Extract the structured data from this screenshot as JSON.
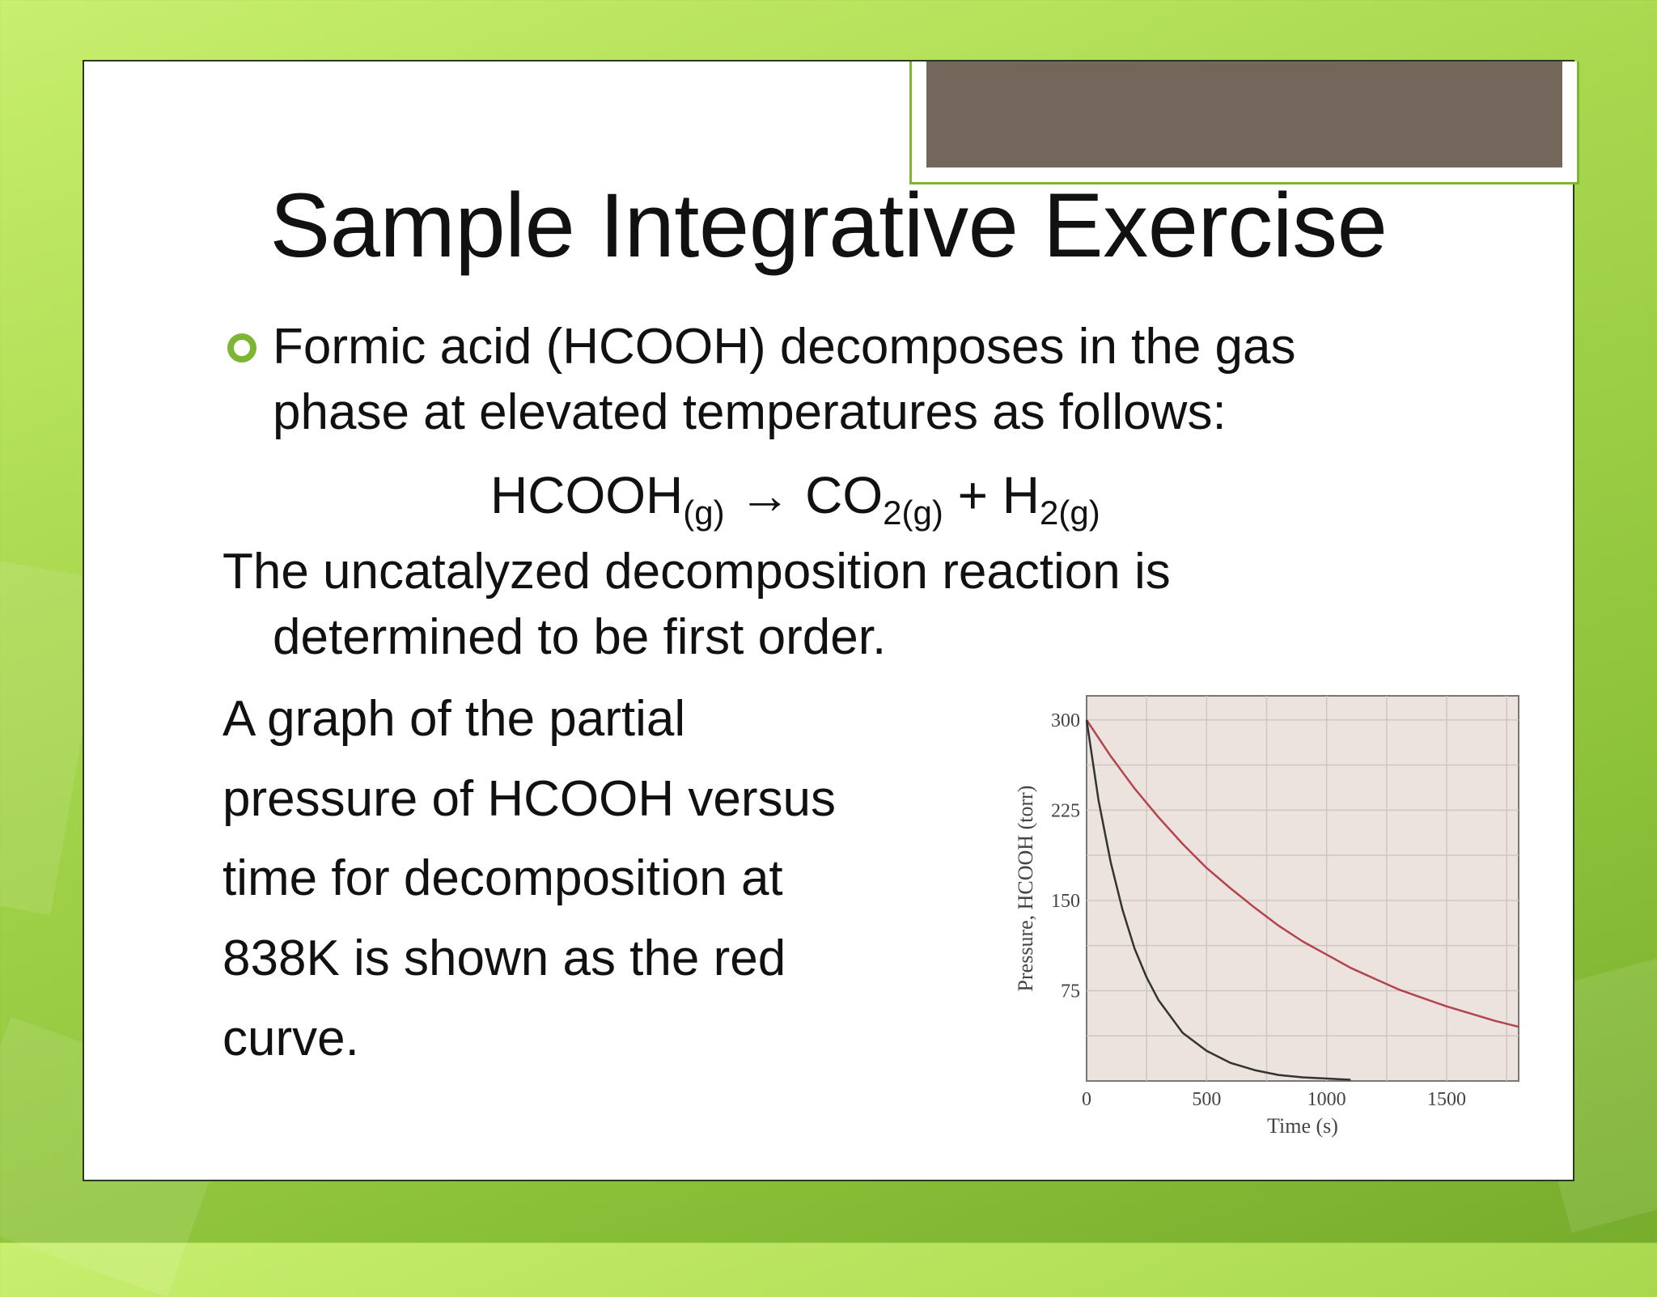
{
  "slide": {
    "title": "Sample Integrative Exercise",
    "bullet_text_line1": "Formic acid (HCOOH) decomposes in the gas",
    "bullet_text_line2": "phase at elevated temperatures as follows:",
    "equation": {
      "reactant": "HCOOH",
      "reactant_state": "(g)",
      "arrow": "→",
      "product1": "CO",
      "product1_sub": "2(g)",
      "plus": "+",
      "product2": "H",
      "product2_sub": "2(g)"
    },
    "para2_line1": "The uncatalyzed decomposition reaction is",
    "para2_line2": "determined to be first order.",
    "para3_lines": [
      "A graph of the partial",
      "pressure of HCOOH versus",
      "time for decomposition at",
      "838K is shown as the red",
      "curve."
    ]
  },
  "colors": {
    "accent_green": "#7eb634",
    "tab_brown": "#73665a",
    "plot_bg": "#ece3de",
    "red_curve": "#b4434d",
    "black_curve": "#333333"
  },
  "chart_data": {
    "type": "line",
    "xlabel": "Time (s)",
    "ylabel": "Pressure, HCOOH (torr)",
    "xlim": [
      0,
      1800
    ],
    "ylim": [
      0,
      320
    ],
    "x_ticks": [
      0,
      500,
      1000,
      1500
    ],
    "y_ticks": [
      75,
      150,
      225,
      300
    ],
    "grid": true,
    "series": [
      {
        "color": "#b4434d",
        "x": [
          0,
          100,
          200,
          300,
          400,
          500,
          600,
          700,
          800,
          900,
          1000,
          1100,
          1200,
          1300,
          1400,
          1500,
          1600,
          1700,
          1800
        ],
        "y": [
          300,
          270,
          243,
          219,
          197,
          177,
          160,
          144,
          129,
          116,
          105,
          94,
          85,
          76,
          69,
          62,
          56,
          50,
          45
        ]
      },
      {
        "color": "#333333",
        "x": [
          0,
          50,
          100,
          150,
          200,
          250,
          300,
          400,
          500,
          600,
          700,
          800,
          900,
          1000,
          1100
        ],
        "y": [
          300,
          233,
          182,
          142,
          110,
          86,
          67,
          40,
          25,
          15,
          9,
          5,
          3,
          2,
          1
        ]
      }
    ]
  }
}
